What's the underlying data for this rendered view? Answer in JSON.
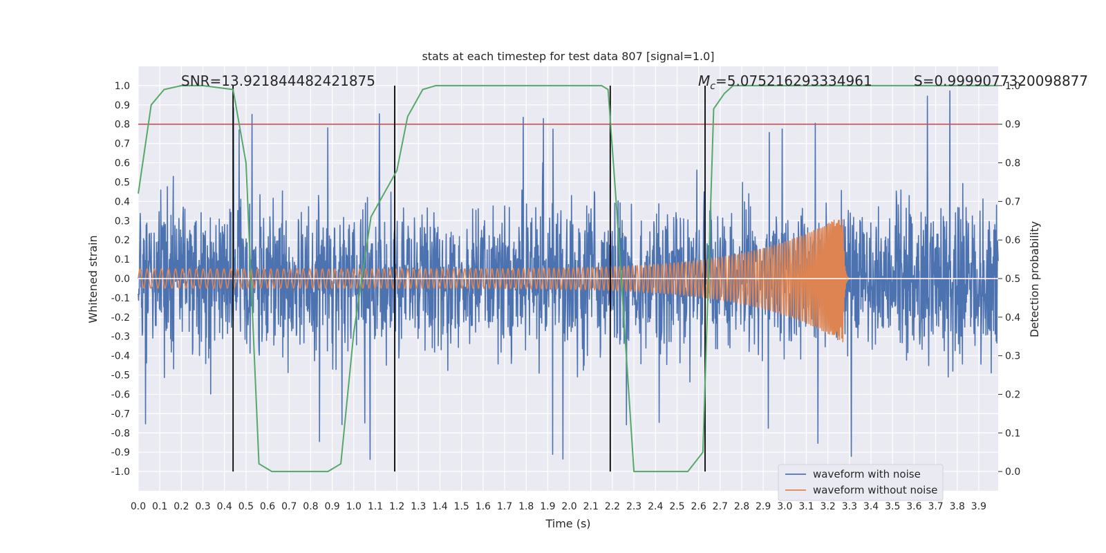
{
  "chart_data": {
    "type": "line",
    "title": "stats at each timestep for test data 807 [signal=1.0]",
    "xlabel": "Time (s)",
    "ylabel": "Whitened strain",
    "y2label": "Detection probability",
    "xlim": [
      0.0,
      3.99
    ],
    "ylim": [
      -1.1,
      1.1
    ],
    "y2lim": [
      -0.05,
      1.05
    ],
    "x_ticks": [
      "0.0",
      "0.1",
      "0.2",
      "0.3",
      "0.4",
      "0.5",
      "0.6",
      "0.7",
      "0.8",
      "0.9",
      "1.0",
      "1.1",
      "1.2",
      "1.3",
      "1.4",
      "1.5",
      "1.6",
      "1.7",
      "1.8",
      "1.9",
      "2.0",
      "2.1",
      "2.2",
      "2.3",
      "2.4",
      "2.5",
      "2.6",
      "2.7",
      "2.8",
      "2.9",
      "3.0",
      "3.1",
      "3.2",
      "3.3",
      "3.4",
      "3.5",
      "3.6",
      "3.7",
      "3.8",
      "3.9"
    ],
    "y_ticks": [
      "1.0",
      "0.9",
      "0.8",
      "0.7",
      "0.6",
      "0.5",
      "0.4",
      "0.3",
      "0.2",
      "0.1",
      "0.0",
      "-0.1",
      "-0.2",
      "-0.3",
      "-0.4",
      "-0.5",
      "-0.6",
      "-0.7",
      "-0.8",
      "-0.9",
      "-1.0"
    ],
    "y2_ticks": [
      "1.0",
      "0.9",
      "0.8",
      "0.7",
      "0.6",
      "0.5",
      "0.4",
      "0.3",
      "0.2",
      "0.1",
      "0.0"
    ],
    "grid": true,
    "legend_position": "bottom-right",
    "annotations": {
      "snr": "SNR=13.921844482421875",
      "mc_symbol": "M",
      "mc_sub": "c",
      "mc_value": "=5.075216293334961",
      "s": "S=0.9999077320098877"
    },
    "series": [
      {
        "name": "waveform with noise",
        "color": "#4c72b0",
        "noise_amplitude": 0.32,
        "noise_peak": 1.0
      },
      {
        "name": "waveform without noise",
        "color": "#dd8452",
        "chirp_amplitude_start": 0.05,
        "chirp_amplitude_peak": 0.33,
        "merger_time": 3.27,
        "ringdown_end": 3.3
      },
      {
        "color": "#55a868",
        "axis": "right",
        "x": [
          0.0,
          0.06,
          0.12,
          0.2,
          0.3,
          0.44,
          0.5,
          0.56,
          0.62,
          0.8,
          0.88,
          0.94,
          1.0,
          1.08,
          1.2,
          1.25,
          1.32,
          1.38,
          1.5,
          2.15,
          2.18,
          2.22,
          2.3,
          2.38,
          2.55,
          2.62,
          2.67,
          2.72,
          2.76,
          3.99
        ],
        "y": [
          0.72,
          0.95,
          0.99,
          1.0,
          1.0,
          0.99,
          0.8,
          0.02,
          0.0,
          0.0,
          0.0,
          0.02,
          0.36,
          0.66,
          0.78,
          0.92,
          0.99,
          1.0,
          1.0,
          1.0,
          0.99,
          0.68,
          0.0,
          0.0,
          0.0,
          0.05,
          0.94,
          0.98,
          1.0,
          1.0
        ]
      }
    ],
    "threshold": {
      "color": "#c44e52",
      "value": 0.9
    },
    "vlines": [
      0.44,
      1.19,
      2.19,
      2.63
    ]
  }
}
